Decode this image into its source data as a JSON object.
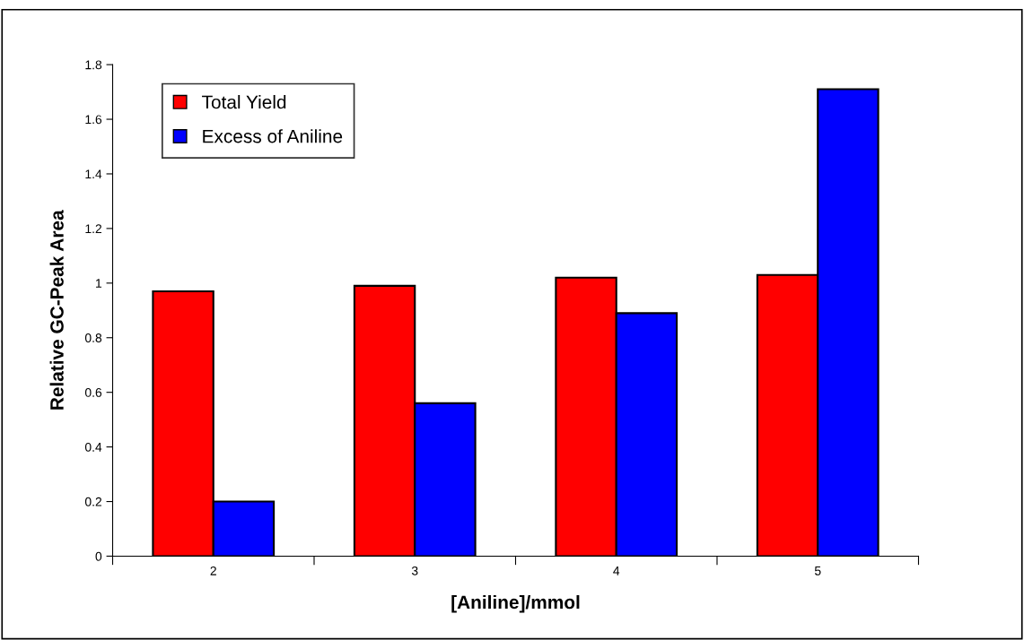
{
  "chart_data": {
    "type": "bar",
    "xlabel": "[Aniline]/mmol",
    "ylabel": "Relative GC-Peak Area",
    "categories": [
      "2",
      "3",
      "4",
      "5"
    ],
    "series": [
      {
        "name": "Total Yield",
        "color": "#ff0000",
        "values": [
          0.97,
          0.99,
          1.02,
          1.03
        ]
      },
      {
        "name": "Excess of Aniline",
        "color": "#0000ff",
        "values": [
          0.2,
          0.56,
          0.89,
          1.71
        ]
      }
    ],
    "ylim": [
      0,
      1.8
    ],
    "yticks": [
      0,
      0.2,
      0.4,
      0.6,
      0.8,
      1,
      1.2,
      1.4,
      1.6,
      1.8
    ],
    "grid": false,
    "legend": "top left"
  }
}
